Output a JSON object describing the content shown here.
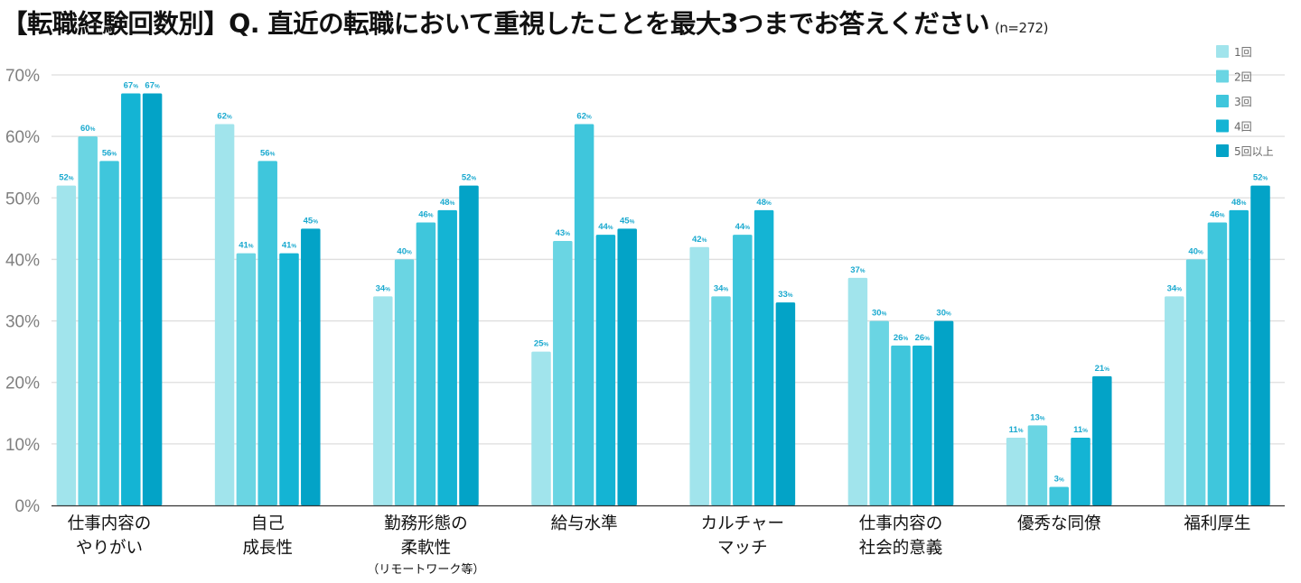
{
  "chart_data": {
    "type": "bar",
    "title": "【転職経験回数別】Q. 直近の転職において重視したことを最大3つまでお答えください",
    "subtitle": "(n=272)",
    "xlabel": "",
    "ylabel": "",
    "ylim": [
      0,
      70
    ],
    "yticks": [
      "0%",
      "10%",
      "20%",
      "30%",
      "40%",
      "50%",
      "60%",
      "70%"
    ],
    "ytick_values": [
      0,
      10,
      20,
      30,
      40,
      50,
      60,
      70
    ],
    "grid": true,
    "legend_position": "top-right",
    "categories": [
      {
        "lines": [
          "仕事内容の",
          "やりがい"
        ],
        "note": ""
      },
      {
        "lines": [
          "自己",
          "成長性"
        ],
        "note": ""
      },
      {
        "lines": [
          "勤務形態の",
          "柔軟性"
        ],
        "note": "（リモートワーク等）"
      },
      {
        "lines": [
          "給与水準"
        ],
        "note": ""
      },
      {
        "lines": [
          "カルチャー",
          "マッチ"
        ],
        "note": ""
      },
      {
        "lines": [
          "仕事内容の",
          "社会的意義"
        ],
        "note": ""
      },
      {
        "lines": [
          "優秀な同僚"
        ],
        "note": ""
      },
      {
        "lines": [
          "福利厚生"
        ],
        "note": ""
      }
    ],
    "value_suffix": "%",
    "series": [
      {
        "name": "1回",
        "color": "#a1e4ec",
        "values": [
          52,
          62,
          34,
          25,
          42,
          37,
          11,
          34
        ]
      },
      {
        "name": "2回",
        "color": "#6ad5e3",
        "values": [
          60,
          41,
          40,
          43,
          34,
          30,
          13,
          40
        ]
      },
      {
        "name": "3回",
        "color": "#3fc6dc",
        "values": [
          56,
          56,
          46,
          62,
          44,
          26,
          3,
          46
        ]
      },
      {
        "name": "4回",
        "color": "#14b4d4",
        "values": [
          67,
          41,
          48,
          44,
          48,
          26,
          11,
          48
        ]
      },
      {
        "name": "5回以上",
        "color": "#03a3c7",
        "values": [
          67,
          45,
          52,
          45,
          33,
          30,
          21,
          52
        ]
      }
    ]
  }
}
